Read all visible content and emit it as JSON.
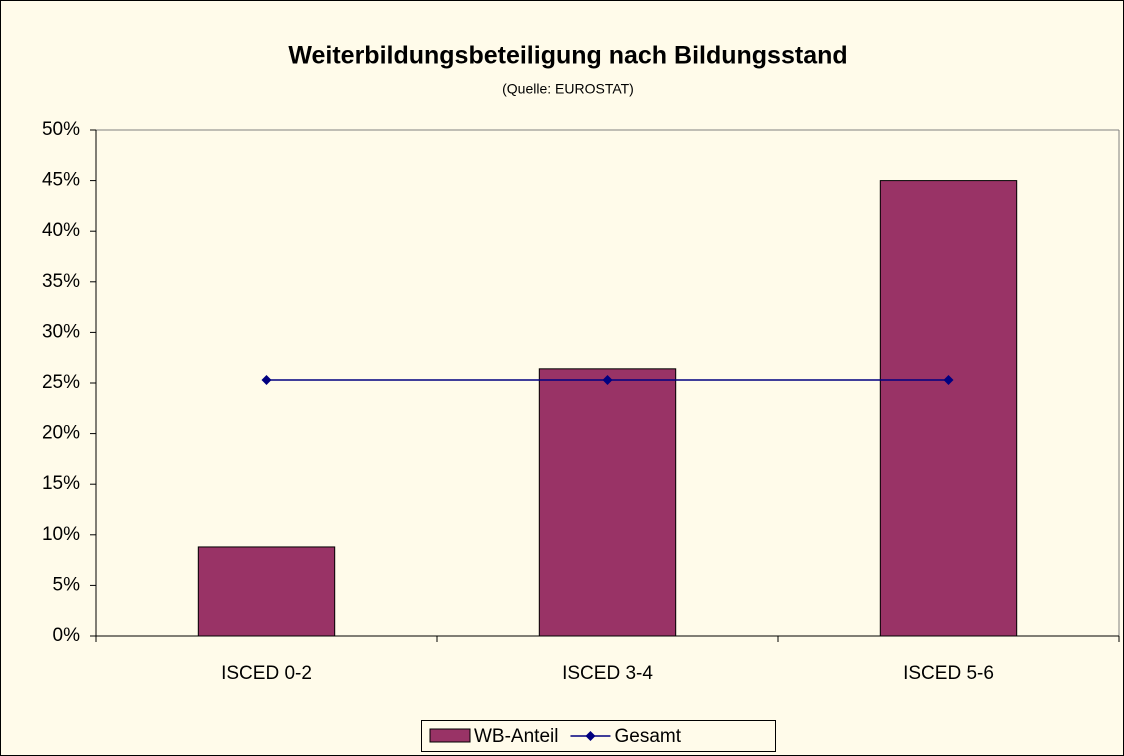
{
  "chart_data": {
    "type": "bar",
    "title": "Weiterbildungsbeteiligung nach Bildungsstand",
    "subtitle": "(Quelle: EUROSTAT)",
    "categories": [
      "ISCED 0-2",
      "ISCED 3-4",
      "ISCED 5-6"
    ],
    "series": [
      {
        "name": "WB-Anteil",
        "type": "bar",
        "color": "#993366",
        "values": [
          8.8,
          26.4,
          45.0
        ]
      },
      {
        "name": "Gesamt",
        "type": "line",
        "color": "#000080",
        "values": [
          25.3,
          25.3,
          25.3
        ]
      }
    ],
    "ylim": [
      0,
      50
    ],
    "yticks": [
      {
        "value": 0,
        "label": "0%"
      },
      {
        "value": 5,
        "label": "5%"
      },
      {
        "value": 10,
        "label": "10%"
      },
      {
        "value": 15,
        "label": "15%"
      },
      {
        "value": 20,
        "label": "20%"
      },
      {
        "value": 25,
        "label": "25%"
      },
      {
        "value": 30,
        "label": "30%"
      },
      {
        "value": 35,
        "label": "35%"
      },
      {
        "value": 40,
        "label": "40%"
      },
      {
        "value": 45,
        "label": "45%"
      },
      {
        "value": 50,
        "label": "50%"
      }
    ],
    "grid": false,
    "legend": "bottom"
  }
}
